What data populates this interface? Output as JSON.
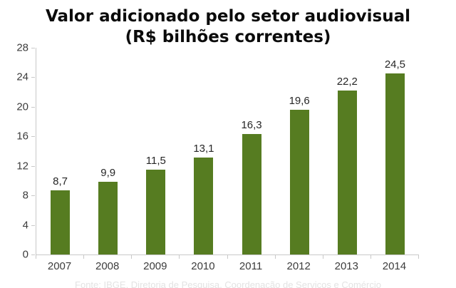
{
  "title": {
    "line1": "Valor adicionado pelo setor audiovisual",
    "line2": "(R$ bilhões correntes)"
  },
  "chart_data": {
    "type": "bar",
    "title": "Valor adicionado pelo setor audiovisual (R$ bilhões correntes)",
    "categories": [
      "2007",
      "2008",
      "2009",
      "2010",
      "2011",
      "2012",
      "2013",
      "2014"
    ],
    "values": [
      8.7,
      9.9,
      11.5,
      13.1,
      16.3,
      19.6,
      22.2,
      24.5
    ],
    "value_labels": [
      "8,7",
      "9,9",
      "11,5",
      "13,1",
      "16,3",
      "19,6",
      "22,2",
      "24,5"
    ],
    "xlabel": "",
    "ylabel": "",
    "ylim": [
      0,
      28
    ],
    "yticks": [
      0,
      4,
      8,
      12,
      16,
      20,
      24,
      28
    ],
    "grid": false,
    "legend": "none",
    "bar_color": "#567C21",
    "axis_color": "#C9C9C9",
    "tick_label_color": "#3C3C3C",
    "value_label_color": "#262626"
  },
  "footer": {
    "source": "Fonte: IBGE, Diretoria de Pesquisa, Coordenação de Serviços e Comércio"
  }
}
